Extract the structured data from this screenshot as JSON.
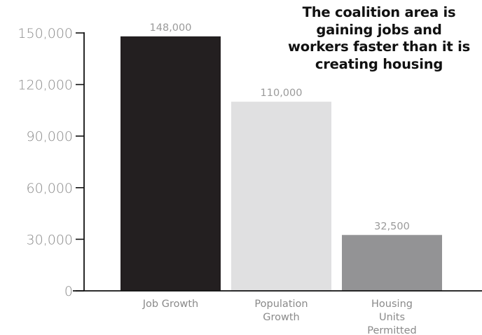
{
  "chart_data": {
    "type": "bar",
    "title_lines": [
      "The coalition area is",
      "gaining jobs and",
      "workers faster than it is",
      "creating housing"
    ],
    "categories": [
      [
        "Job Growth"
      ],
      [
        "Population",
        "Growth"
      ],
      [
        "Housing",
        "Units",
        "Permitted"
      ]
    ],
    "values": [
      148000,
      110000,
      32500
    ],
    "value_labels": [
      "148,000",
      "110,000",
      "32,500"
    ],
    "bar_colors": [
      "#231f20",
      "#e0e0e1",
      "#939395"
    ],
    "ylim": [
      0,
      150000
    ],
    "yticks": [
      0,
      30000,
      60000,
      90000,
      120000,
      150000
    ],
    "ytick_labels": [
      "0",
      "30,000",
      "60,000",
      "90,000",
      "120,000",
      "150,000"
    ],
    "grid": false,
    "legend": "none"
  },
  "colors": {
    "axis": "#111111",
    "tick_text": "#8a8a8a",
    "value_label_text": "#9a9a9a",
    "category_text": "#8a8a8a",
    "title_text": "#111111"
  }
}
